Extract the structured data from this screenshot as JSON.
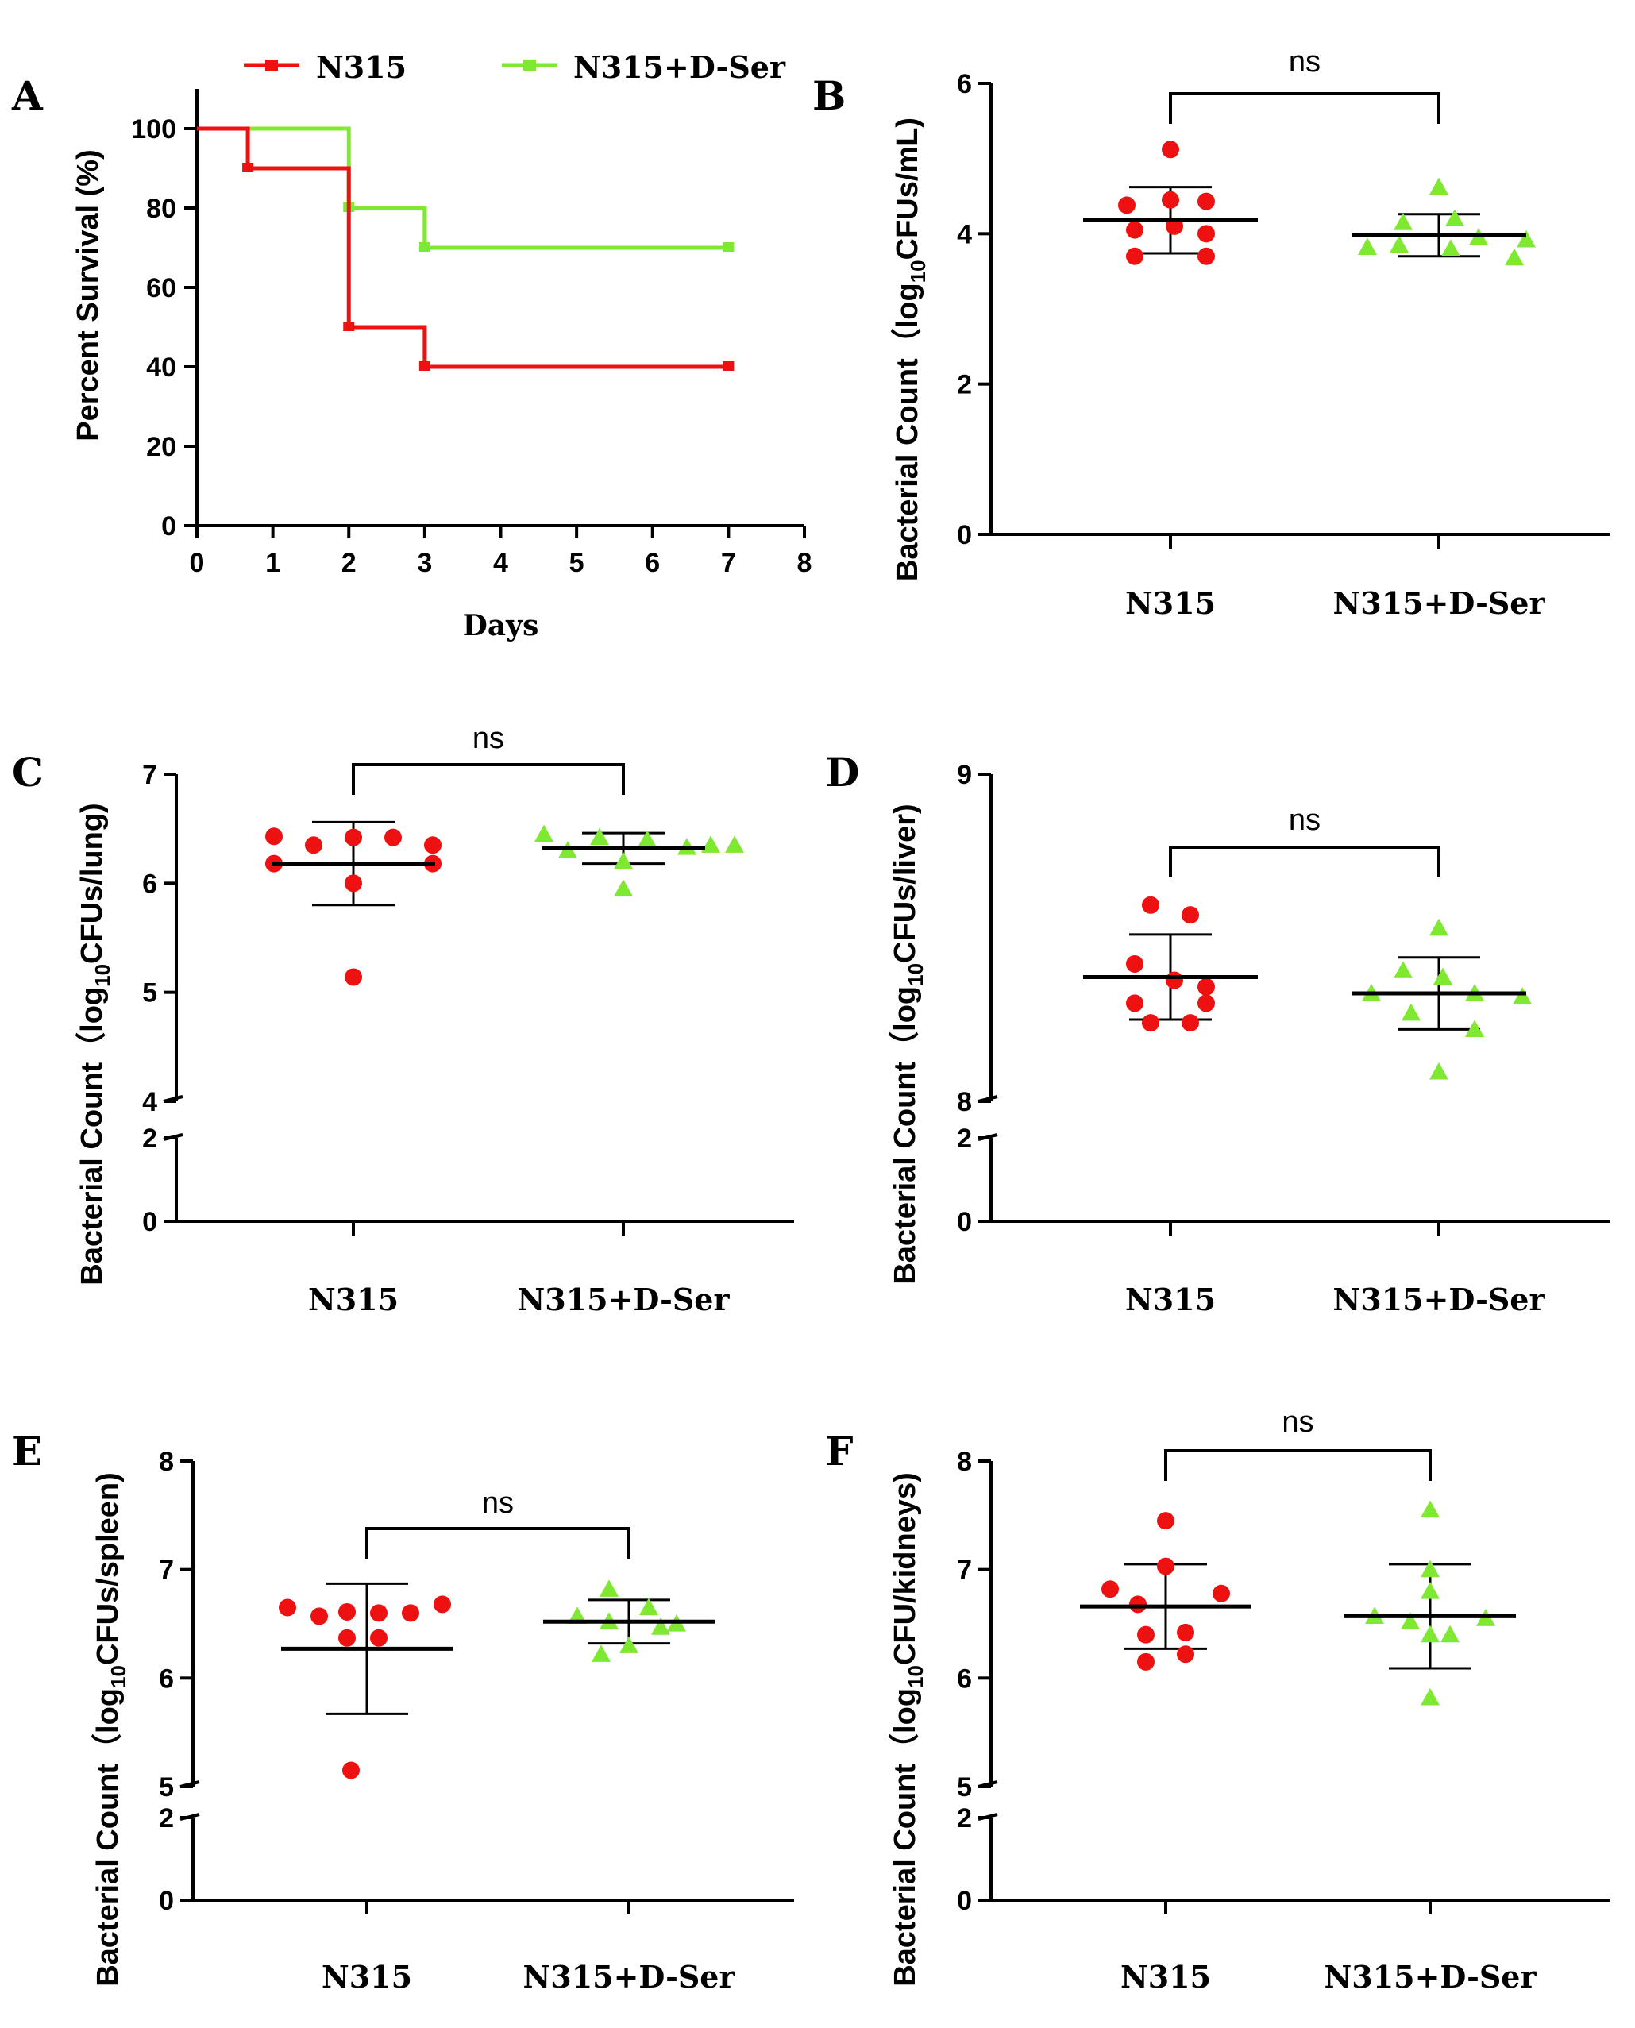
{
  "colors": {
    "group1": "#ee1111",
    "group2": "#7fe831",
    "axis": "#000000"
  },
  "chart_data": [
    {
      "id": "A",
      "type": "line",
      "panel_label": "A",
      "title": "",
      "xlabel": "Days",
      "ylabel": "Percent Survival (%)",
      "xlim": [
        0,
        8
      ],
      "ylim": [
        0,
        110
      ],
      "xticks": [
        "0",
        "1",
        "2",
        "3",
        "4",
        "5",
        "6",
        "7",
        "8"
      ],
      "yticks": [
        "0",
        "20",
        "40",
        "60",
        "80",
        "100"
      ],
      "legend": [
        {
          "name": "N315"
        },
        {
          "name": "N315+D-Ser"
        }
      ],
      "series": [
        {
          "name": "N315",
          "step_x": [
            0,
            0.67,
            2,
            3,
            7
          ],
          "step_y": [
            100,
            90,
            50,
            40,
            40
          ],
          "censor_x": [
            0.67,
            2,
            3,
            7
          ],
          "censor_y": [
            90,
            50,
            40,
            40
          ]
        },
        {
          "name": "N315+D-Ser",
          "step_x": [
            0,
            2,
            3,
            7
          ],
          "step_y": [
            100,
            80,
            70,
            70
          ],
          "censor_x": [
            2,
            3,
            7
          ],
          "censor_y": [
            80,
            70,
            70
          ]
        }
      ]
    },
    {
      "id": "B",
      "type": "scatter",
      "panel_label": "B",
      "ylabel_main": "Bacterial Count（log",
      "ylabel_sub": "10",
      "ylabel_tail": "CFUs/mL)",
      "categories": [
        "N315",
        "N315+D-Ser"
      ],
      "ylim": [
        0,
        6
      ],
      "yticks": [
        "0",
        "2",
        "4",
        "6"
      ],
      "significance": "ns",
      "groups": [
        {
          "name": "N315",
          "mean": 4.18,
          "sd": 0.44,
          "points": [
            5.12,
            4.38,
            4.45,
            4.43,
            4.05,
            4.1,
            4.0,
            3.7,
            3.7
          ]
        },
        {
          "name": "N315+D-Ser",
          "mean": 3.98,
          "sd": 0.28,
          "points": [
            4.62,
            4.15,
            4.2,
            3.95,
            3.82,
            3.85,
            3.8,
            3.92,
            3.68
          ]
        }
      ]
    },
    {
      "id": "C",
      "type": "scatter",
      "panel_label": "C",
      "ylabel_main": "Bacterial Count（log",
      "ylabel_sub": "10",
      "ylabel_tail": "CFUs/lung)",
      "categories": [
        "N315",
        "N315+D-Ser"
      ],
      "broken_axis": true,
      "upper_range": [
        4,
        7
      ],
      "lower_range": [
        0,
        2
      ],
      "upper_ticks": [
        "4",
        "5",
        "6",
        "7"
      ],
      "lower_ticks": [
        "0",
        "2"
      ],
      "significance": "ns",
      "groups": [
        {
          "name": "N315",
          "mean": 6.18,
          "sd": 0.38,
          "points": [
            6.43,
            6.35,
            6.42,
            6.42,
            6.35,
            6.18,
            6.18,
            6.0,
            5.14
          ]
        },
        {
          "name": "N315+D-Ser",
          "mean": 6.32,
          "sd": 0.14,
          "points": [
            6.45,
            6.3,
            6.42,
            6.4,
            6.33,
            6.35,
            6.35,
            6.2,
            5.95
          ]
        }
      ]
    },
    {
      "id": "D",
      "type": "scatter",
      "panel_label": "D",
      "ylabel_main": "Bacterial Count（log",
      "ylabel_sub": "10",
      "ylabel_tail": "CFUs/liver)",
      "categories": [
        "N315",
        "N315+D-Ser"
      ],
      "broken_axis": true,
      "upper_range": [
        8,
        9
      ],
      "lower_range": [
        0,
        2
      ],
      "upper_ticks": [
        "8",
        "9"
      ],
      "lower_ticks": [
        "0",
        "2"
      ],
      "significance": "ns",
      "groups": [
        {
          "name": "N315",
          "mean": 8.38,
          "sd": 0.13,
          "points": [
            8.6,
            8.57,
            8.42,
            8.35,
            8.37,
            8.3,
            8.3,
            8.24,
            8.24
          ]
        },
        {
          "name": "N315+D-Ser",
          "mean": 8.33,
          "sd": 0.11,
          "points": [
            8.53,
            8.4,
            8.38,
            8.33,
            8.33,
            8.32,
            8.27,
            8.22,
            8.09
          ]
        }
      ]
    },
    {
      "id": "E",
      "type": "scatter",
      "panel_label": "E",
      "ylabel_main": "Bacterial Count（log",
      "ylabel_sub": "10",
      "ylabel_tail": "CFUs/spleen)",
      "categories": [
        "N315",
        "N315+D-Ser"
      ],
      "broken_axis": true,
      "upper_range": [
        5,
        8
      ],
      "lower_range": [
        0,
        2
      ],
      "upper_ticks": [
        "5",
        "6",
        "7",
        "8"
      ],
      "lower_ticks": [
        "0",
        "2"
      ],
      "significance": "ns",
      "groups": [
        {
          "name": "N315",
          "mean": 6.27,
          "sd": 0.6,
          "points": [
            6.65,
            6.57,
            6.61,
            6.6,
            6.6,
            6.68,
            6.37,
            6.37,
            5.15
          ]
        },
        {
          "name": "N315+D-Ser",
          "mean": 6.52,
          "sd": 0.2,
          "points": [
            6.82,
            6.65,
            6.57,
            6.65,
            6.5,
            6.52,
            6.47,
            6.3,
            6.22
          ]
        }
      ]
    },
    {
      "id": "F",
      "type": "scatter",
      "panel_label": "F",
      "ylabel_main": "Bacterial Count（log",
      "ylabel_sub": "10",
      "ylabel_tail": "CFU/kidneys)",
      "categories": [
        "N315",
        "N315+D-Ser"
      ],
      "broken_axis": true,
      "upper_range": [
        5,
        8
      ],
      "lower_range": [
        0,
        2
      ],
      "upper_ticks": [
        "5",
        "6",
        "7",
        "8"
      ],
      "lower_ticks": [
        "0",
        "2"
      ],
      "significance": "ns",
      "groups": [
        {
          "name": "N315",
          "mean": 6.66,
          "sd": 0.39,
          "points": [
            7.45,
            7.03,
            6.82,
            6.78,
            6.68,
            6.42,
            6.4,
            6.22,
            6.15
          ]
        },
        {
          "name": "N315+D-Ser",
          "mean": 6.57,
          "sd": 0.48,
          "points": [
            7.55,
            7.0,
            6.8,
            6.57,
            6.55,
            6.52,
            6.4,
            6.4,
            5.82
          ]
        }
      ]
    }
  ]
}
